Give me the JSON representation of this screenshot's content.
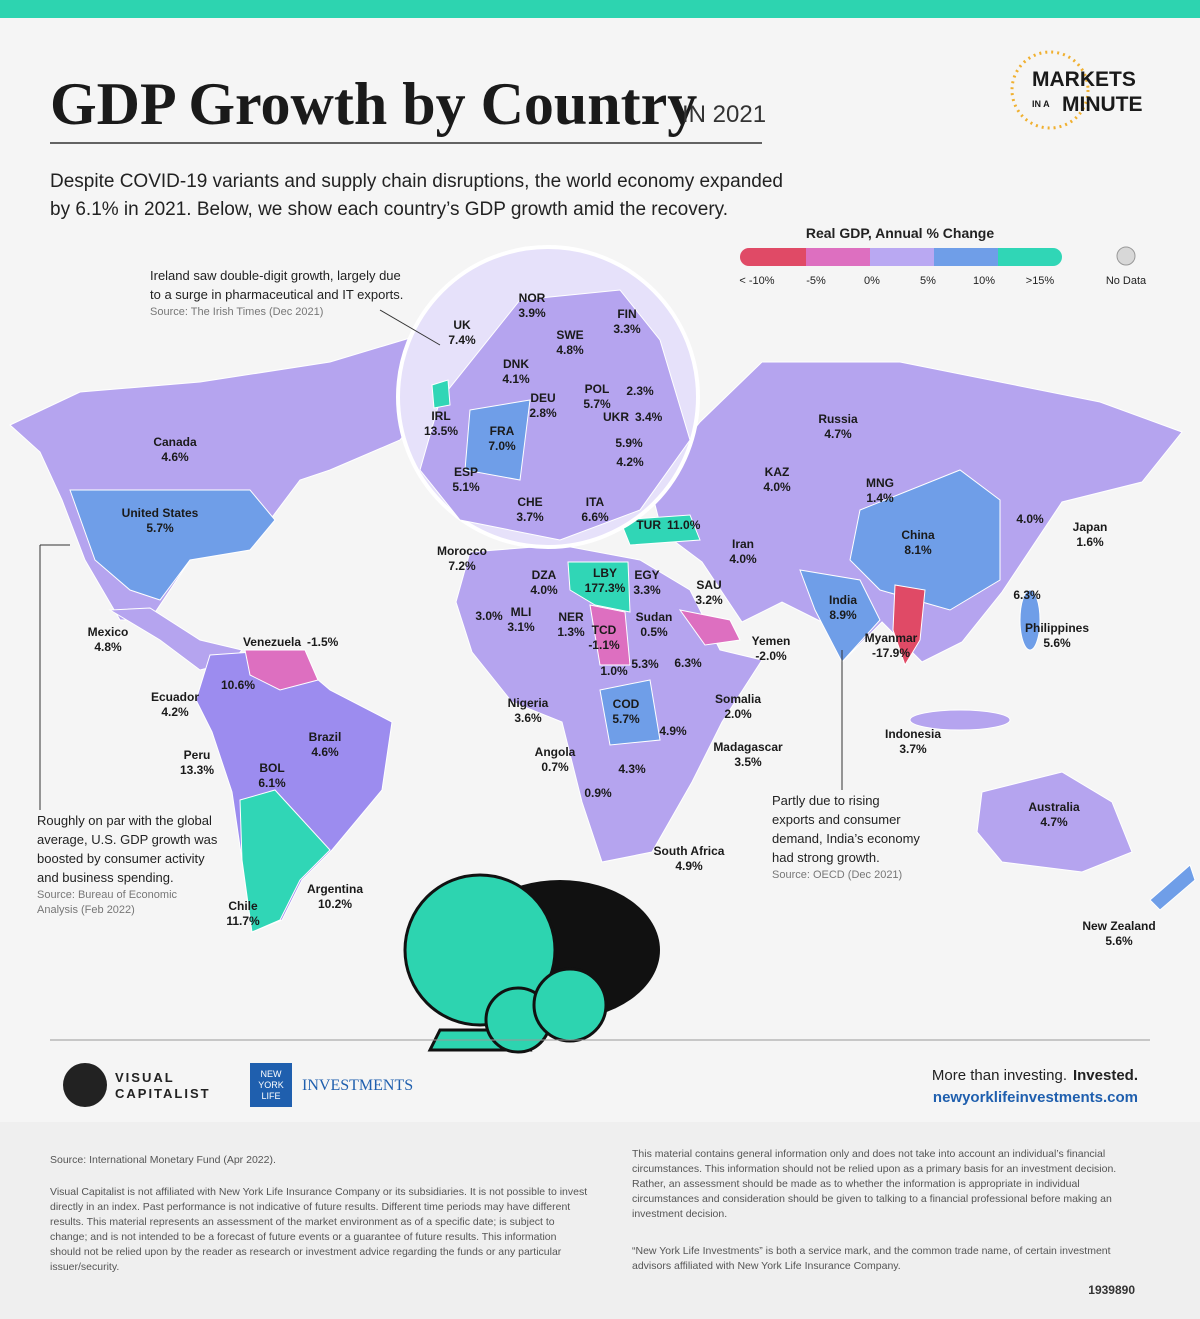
{
  "header": {
    "title": "GDP Growth by Country",
    "title_suffix": "IN 2021",
    "logo": [
      "MARKETS",
      "IN A",
      "MINUTE"
    ],
    "intro": [
      "Despite COVID-19 variants and supply chain disruptions, the world economy expanded",
      "by 6.1% in 2021. Below, we show each country’s GDP growth amid the recovery."
    ]
  },
  "legend": {
    "title": "Real GDP, Annual % Change",
    "labels": [
      "< -10%",
      "-5%",
      "0%",
      "5%",
      "10%",
      ">15%"
    ],
    "no_data": "No Data"
  },
  "annotations": [
    {
      "lines": [
        "Ireland saw double-digit growth, largely due",
        "to a surge in pharmaceutical and IT exports."
      ],
      "source": [
        "Source: The Irish Times (Dec 2021)"
      ]
    },
    {
      "lines": [
        "Roughly on par with the global",
        "average, U.S. GDP growth was",
        "boosted by consumer activity",
        "and business spending."
      ],
      "source": [
        "Source: Bureau of Economic",
        "Analysis (Feb 2022)"
      ]
    },
    {
      "lines": [
        "Partly due to rising",
        "exports and consumer",
        "demand, India’s economy",
        "had strong growth."
      ],
      "source": [
        "Source: OECD (Dec 2021)"
      ]
    }
  ],
  "countries": [
    {
      "name": "Canada",
      "value": "4.6%"
    },
    {
      "name": "United States",
      "value": "5.7%"
    },
    {
      "name": "Mexico",
      "value": "4.8%"
    },
    {
      "name": "Venezuela",
      "value": "-1.5%"
    },
    {
      "name": "Ecuador",
      "value": "4.2%"
    },
    {
      "name": "Peru",
      "value": "13.3%"
    },
    {
      "name": "BOL",
      "value": "6.1%"
    },
    {
      "name": "Brazil",
      "value": "4.6%"
    },
    {
      "name": "Chile",
      "value": "11.7%"
    },
    {
      "name": "Argentina",
      "value": "10.2%"
    },
    {
      "value": "10.6%"
    },
    {
      "name": "Morocco",
      "value": "7.2%"
    },
    {
      "name": "DZA",
      "value": "4.0%"
    },
    {
      "name": "LBY",
      "value": "177.3%"
    },
    {
      "name": "EGY",
      "value": "3.3%"
    },
    {
      "name": "MLI",
      "value": "3.1%"
    },
    {
      "value": "3.0%"
    },
    {
      "name": "NER",
      "value": "1.3%"
    },
    {
      "name": "TCD",
      "value": "-1.1%"
    },
    {
      "name": "Sudan",
      "value": "0.5%"
    },
    {
      "value": "5.3%"
    },
    {
      "value": "6.3%"
    },
    {
      "value": "1.0%"
    },
    {
      "name": "Nigeria",
      "value": "3.6%"
    },
    {
      "name": "COD",
      "value": "5.7%"
    },
    {
      "value": "4.9%"
    },
    {
      "name": "Angola",
      "value": "0.7%"
    },
    {
      "value": "4.3%"
    },
    {
      "value": "0.9%"
    },
    {
      "name": "South Africa",
      "value": "4.9%"
    },
    {
      "name": "Somalia",
      "value": "2.0%"
    },
    {
      "name": "Madagascar",
      "value": "3.5%"
    },
    {
      "name": "Yemen",
      "value": "-2.0%"
    },
    {
      "name": "SAU",
      "value": "3.2%"
    },
    {
      "name": "Iran",
      "value": "4.0%"
    },
    {
      "name": "TUR",
      "value": "11.0%"
    },
    {
      "name": "Russia",
      "value": "4.7%"
    },
    {
      "name": "KAZ",
      "value": "4.0%"
    },
    {
      "name": "MNG",
      "value": "1.4%"
    },
    {
      "name": "China",
      "value": "8.1%"
    },
    {
      "value": "4.0%"
    },
    {
      "name": "Japan",
      "value": "1.6%"
    },
    {
      "value": "6.3%"
    },
    {
      "name": "Philippines",
      "value": "5.6%"
    },
    {
      "name": "India",
      "value": "8.9%"
    },
    {
      "name": "Myanmar",
      "value": "-17.9%"
    },
    {
      "name": "Indonesia",
      "value": "3.7%"
    },
    {
      "name": "Australia",
      "value": "4.7%"
    },
    {
      "name": "New Zealand",
      "value": "5.6%"
    },
    {
      "name": "NOR",
      "value": "3.9%"
    },
    {
      "name": "FIN",
      "value": "3.3%"
    },
    {
      "name": "SWE",
      "value": "4.8%"
    },
    {
      "name": "UK",
      "value": "7.4%"
    },
    {
      "name": "DNK",
      "value": "4.1%"
    },
    {
      "name": "DEU",
      "value": "2.8%"
    },
    {
      "name": "POL",
      "value": "5.7%"
    },
    {
      "value": "2.3%"
    },
    {
      "name": "UKR",
      "value": "3.4%"
    },
    {
      "name": "IRL",
      "value": "13.5%"
    },
    {
      "name": "FRA",
      "value": "7.0%"
    },
    {
      "value": "5.9%"
    },
    {
      "value": "4.2%"
    },
    {
      "name": "ESP",
      "value": "5.1%"
    },
    {
      "name": "CHE",
      "value": "3.7%"
    },
    {
      "name": "ITA",
      "value": "6.6%"
    }
  ],
  "footer": {
    "brand": [
      "VISUAL",
      "CAPITALIST"
    ],
    "partner": [
      "NEW",
      "YORK",
      "LIFE"
    ],
    "partner_unit": "INVESTMENTS",
    "tagline": "More than investing.",
    "tagline_bold": "Invested.",
    "url": "newyorklifeinvestments.com",
    "source": "Source: International Monetary Fund (Apr 2022).",
    "disclaimer_left": "Visual Capitalist is not affiliated with New York Life Insurance Company or its subsidiaries. It is not possible to invest directly in an index. Past performance is not indicative of future results. Different time periods may have different results. This material represents an assessment of the market environment as of a specific date; is subject to change; and is not intended to be a forecast of future events or a guarantee of future results. This information should not be relied upon by the reader as research or investment advice regarding the funds or any particular issuer/security.",
    "disclaimer_right": "This material contains general information only and does not take into account an individual’s financial circumstances. This information should not be relied upon as a primary basis for an investment decision. Rather, an assessment should be made as to whether the information is appropriate in individual circumstances and consideration should be given to talking to a financial professional before making an investment decision.",
    "service_mark": "“New York Life Investments” is both a service mark, and the common trade name, of certain investment advisors affiliated with New York Life Insurance Company.",
    "code": "1939890"
  }
}
